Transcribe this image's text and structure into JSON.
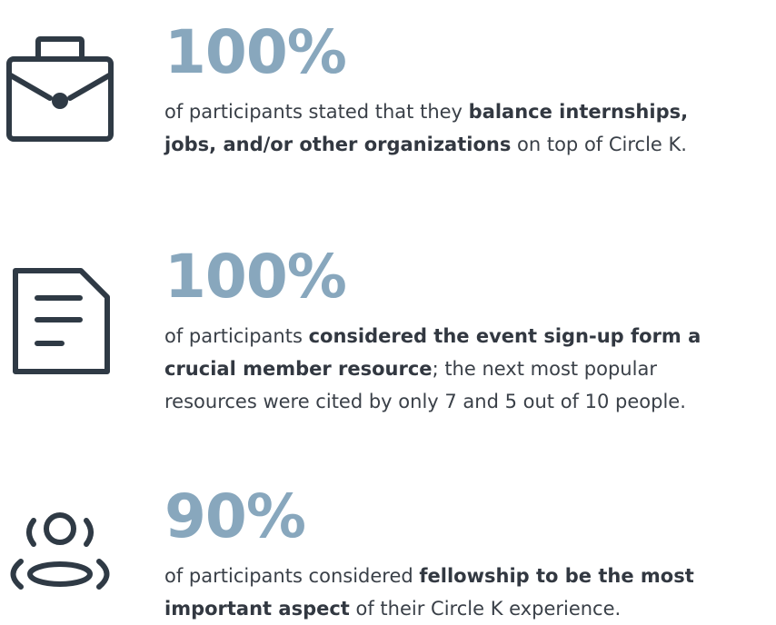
{
  "stats": [
    {
      "icon": "briefcase-icon",
      "percent": "100%",
      "desc_pre": "of participants stated that they ",
      "desc_bold": "balance internships, jobs, and/or other organizations",
      "desc_post": " on top of Circle K."
    },
    {
      "icon": "document-icon",
      "percent": "100%",
      "desc_pre": "of participants ",
      "desc_bold": "considered the event sign-up form a crucial member resource",
      "desc_post": "; the next most popular resources were cited by only 7 and 5 out of 10 people."
    },
    {
      "icon": "people-group-icon",
      "percent": "90%",
      "desc_pre": "of participants considered ",
      "desc_bold": "fellowship to be the most important aspect",
      "desc_post": " of their Circle K experience."
    }
  ],
  "colors": {
    "percent": "#88a7bd",
    "text": "#3a4048",
    "icon": "#2f3a45"
  }
}
